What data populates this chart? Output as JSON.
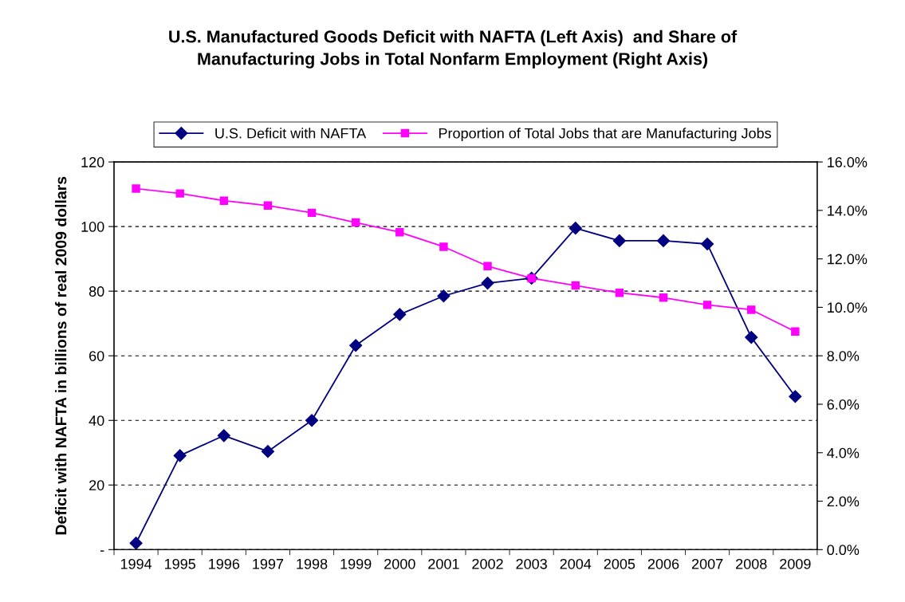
{
  "chart_data": {
    "type": "line",
    "title": "U.S. Manufactured Goods Deficit with NAFTA (Left Axis)  and Share of\nManufacturing Jobs in Total Nonfarm Employment (Right Axis)",
    "ylabel": "Deficit with NAFTA in billions of real 2009 dollars",
    "categories": [
      "1994",
      "1995",
      "1996",
      "1997",
      "1998",
      "1999",
      "2000",
      "2001",
      "2002",
      "2003",
      "2004",
      "2005",
      "2006",
      "2007",
      "2008",
      "2009"
    ],
    "series": [
      {
        "name": "U.S. Deficit with NAFTA",
        "color": "#000080",
        "marker": "diamond",
        "values": [
          2.0,
          29.1,
          35.3,
          30.4,
          40.0,
          63.2,
          72.8,
          78.5,
          82.5,
          84.0,
          99.5,
          95.6,
          95.6,
          94.6,
          65.7,
          47.4
        ]
      },
      {
        "name": "Proportion of Total Jobs that are Manufacturing Jobs",
        "color": "#ff00ff",
        "marker": "square",
        "axis": "y2",
        "values": [
          14.9,
          14.7,
          14.4,
          14.2,
          13.9,
          13.5,
          13.1,
          12.5,
          11.7,
          11.2,
          10.9,
          10.6,
          10.4,
          10.1,
          9.9,
          9.0
        ]
      }
    ],
    "ylim": [
      0,
      120
    ],
    "yticks": [
      {
        "value": 0,
        "label": "-"
      },
      20,
      40,
      60,
      80,
      100,
      120
    ],
    "y2lim": [
      0,
      16
    ],
    "y2ticks": [
      {
        "value": 0,
        "label": "0.0%"
      },
      {
        "value": 2,
        "label": "2.0%"
      },
      {
        "value": 4,
        "label": "4.0%"
      },
      {
        "value": 6,
        "label": "6.0%"
      },
      {
        "value": 8,
        "label": "8.0%"
      },
      {
        "value": 10,
        "label": "10.0%"
      },
      {
        "value": 12,
        "label": "12.0%"
      },
      {
        "value": 14,
        "label": "14.0%"
      },
      {
        "value": 16,
        "label": "16.0%"
      }
    ],
    "grid": "y",
    "legend": "top",
    "line_style": "solid"
  }
}
